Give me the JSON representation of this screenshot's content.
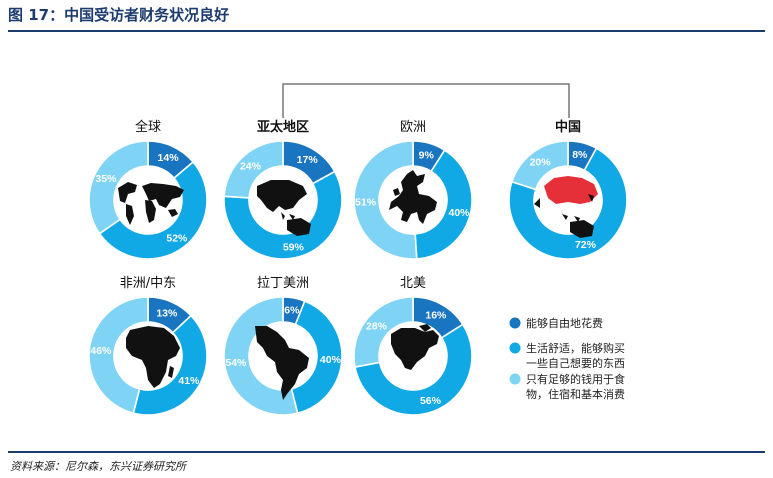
{
  "title": "图 17：中国受访者财务状况良好",
  "source": "资料来源：尼尔森，东兴证券研究所",
  "colors": {
    "series": [
      "#1a75c0",
      "#11a8e6",
      "#7fd3f4"
    ],
    "accent": "#1d3c6e",
    "china_map": "#e5303a"
  },
  "chart_data": {
    "type": "pie",
    "style": "donut",
    "legend": {
      "placement": "bottom-right",
      "entries": [
        {
          "lines": [
            "能够自由地花费"
          ]
        },
        {
          "lines": [
            "生活舒适，能够购买",
            "一些自己想要的东西"
          ]
        },
        {
          "lines": [
            "只有足够的钱用于食",
            "物，住宿和基本消费"
          ]
        }
      ]
    },
    "series_names": [
      "能够自由地花费",
      "生活舒适，能够购买一些自己想要的东西",
      "只有足够的钱用于食物，住宿和基本消费"
    ],
    "regions": [
      {
        "name": "全球",
        "bold": false,
        "values": [
          14,
          52,
          35
        ],
        "labels": [
          "14%",
          "52%",
          "35%"
        ],
        "map": "world-map-icon"
      },
      {
        "name": "亚太地区",
        "bold": true,
        "values": [
          17,
          59,
          24
        ],
        "labels": [
          "17%",
          "59%",
          "24%"
        ],
        "map": "asia-pacific-map-icon"
      },
      {
        "name": "欧洲",
        "bold": false,
        "values": [
          9,
          40,
          51
        ],
        "labels": [
          "9%",
          "40%",
          "51%"
        ],
        "map": "europe-map-icon"
      },
      {
        "name": "中国",
        "bold": true,
        "values": [
          8,
          72,
          20
        ],
        "labels": [
          "8%",
          "72%",
          "20%"
        ],
        "map": "china-map-icon"
      },
      {
        "name": "非洲/中东",
        "bold": false,
        "values": [
          13,
          41,
          46
        ],
        "labels": [
          "13%",
          "41%",
          "46%"
        ],
        "map": "africa-map-icon"
      },
      {
        "name": "拉丁美洲",
        "bold": false,
        "values": [
          6,
          40,
          54
        ],
        "labels": [
          "6%",
          "40%",
          "54%"
        ],
        "map": "latin-america-map-icon"
      },
      {
        "name": "北美",
        "bold": false,
        "values": [
          16,
          56,
          28
        ],
        "labels": [
          "16%",
          "56%",
          "28%"
        ],
        "map": "north-america-map-icon"
      }
    ]
  }
}
